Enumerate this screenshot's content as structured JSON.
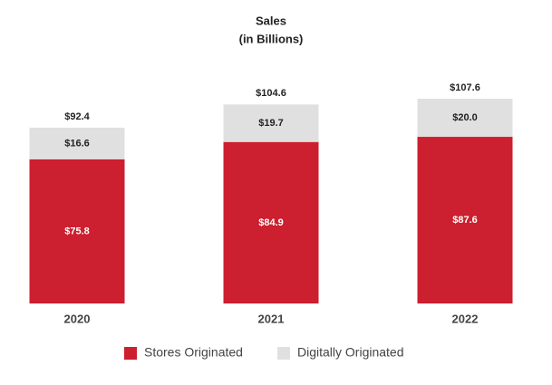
{
  "chart_data": {
    "type": "stacked-bar",
    "title": "Sales",
    "subtitle": "(in Billions)",
    "categories": [
      "2020",
      "2021",
      "2022"
    ],
    "series": [
      {
        "name": "Stores Originated",
        "color": "#cc1f2f",
        "values": [
          75.8,
          84.9,
          87.6
        ],
        "value_labels": [
          "$75.8",
          "$84.9",
          "$87.6"
        ],
        "label_color": "#ffffff"
      },
      {
        "name": "Digitally Originated",
        "color": "#e0e0e0",
        "values": [
          16.6,
          19.7,
          20.0
        ],
        "value_labels": [
          "$16.6",
          "$19.7",
          "$20.0"
        ],
        "label_color": "#222222"
      }
    ],
    "totals": [
      92.4,
      104.6,
      107.6
    ],
    "total_labels": [
      "$92.4",
      "$104.6",
      "$107.6"
    ]
  }
}
